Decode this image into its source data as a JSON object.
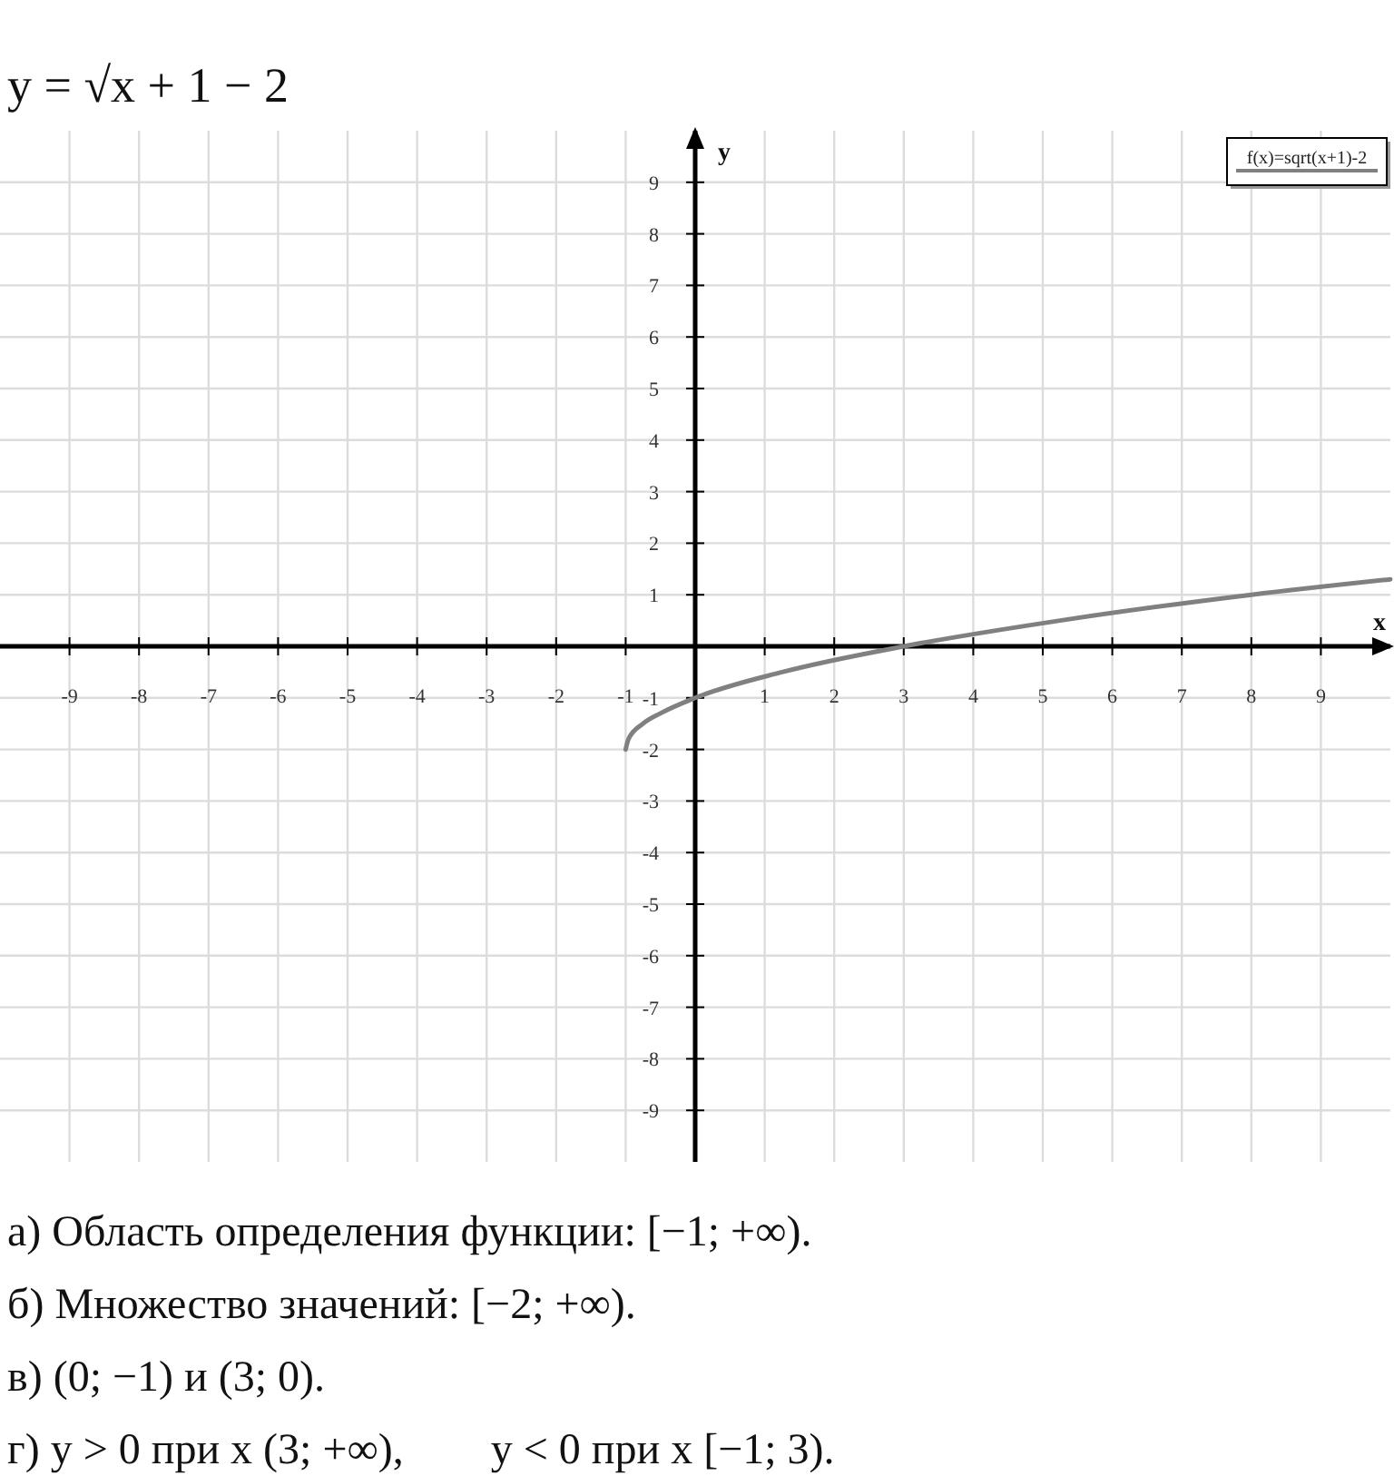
{
  "chart_data": {
    "type": "line",
    "title": "y = √x + 1 − 2",
    "xlabel": "x",
    "ylabel": "y",
    "x": [
      -1,
      -0.96,
      -0.75,
      -0.5,
      0,
      1.25,
      3,
      5.25,
      8,
      10
    ],
    "series": [
      {
        "name": "f(x)=sqrt(x+1)-2",
        "color": "#808080",
        "values": [
          -2,
          -1.8,
          -1.5,
          -1.3,
          -1,
          -0.5,
          0,
          0.5,
          1,
          1.3
        ]
      }
    ],
    "xlim": [
      -10,
      10
    ],
    "ylim": [
      -10,
      10
    ],
    "xticks": [
      -9,
      -8,
      -7,
      -6,
      -5,
      -4,
      -3,
      -2,
      -1,
      1,
      2,
      3,
      4,
      5,
      6,
      7,
      8,
      9
    ],
    "yticks": [
      -9,
      -8,
      -7,
      -6,
      -5,
      -4,
      -3,
      -2,
      -1,
      1,
      2,
      3,
      4,
      5,
      6,
      7,
      8,
      9
    ],
    "grid": true,
    "legend": "top right",
    "annotations": [
      "а) Область определения функции: [−1; +∞).",
      "б) Множество значений: [−2; +∞).",
      "в) (0; −1) и (3; 0).",
      "г) y > 0 при x (3; +∞),        y < 0 при x [−1; 3)."
    ]
  }
}
